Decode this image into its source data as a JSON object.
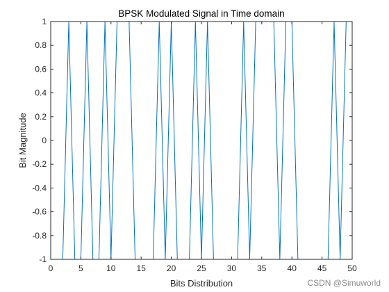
{
  "chart_data": {
    "type": "line",
    "title": "BPSK Modulated Signal in Time domain",
    "xlabel": "Bits Distribution",
    "ylabel": "Bit Magnitude",
    "xlim": [
      0,
      50
    ],
    "ylim": [
      -1,
      1
    ],
    "xticks": [
      "0",
      "5",
      "10",
      "15",
      "20",
      "25",
      "30",
      "35",
      "40",
      "45",
      "50"
    ],
    "yticks": [
      "-1",
      "-0.8",
      "-0.6",
      "-0.4",
      "-0.2",
      "0",
      "0.2",
      "0.4",
      "0.6",
      "0.8",
      "1"
    ],
    "grid": false,
    "series": [
      {
        "color": "#0072BD",
        "x": [
          1,
          2,
          3,
          4,
          5,
          6,
          7,
          8,
          9,
          10,
          11,
          12,
          13,
          14,
          15,
          16,
          17,
          18,
          19,
          20,
          21,
          22,
          23,
          24,
          25,
          26,
          27,
          28,
          29,
          30,
          31,
          32,
          33,
          34,
          35,
          36,
          37,
          38,
          39,
          40,
          41,
          42,
          43,
          44,
          45,
          46,
          47,
          48,
          49,
          50
        ],
        "y": [
          -1,
          -1,
          1,
          -1,
          -1,
          1,
          -1,
          -1,
          1,
          -1,
          1,
          1,
          1,
          -1,
          -1,
          -1,
          -1,
          1,
          -1,
          1,
          -1,
          -1,
          -1,
          1,
          -1,
          1,
          -1,
          -1,
          -1,
          -1,
          -1,
          1,
          -1,
          1,
          1,
          1,
          1,
          -1,
          1,
          1,
          -1,
          -1,
          -1,
          -1,
          -1,
          -1,
          1,
          -1,
          1,
          1
        ]
      }
    ]
  },
  "watermark": "CSDN @Simuworld"
}
